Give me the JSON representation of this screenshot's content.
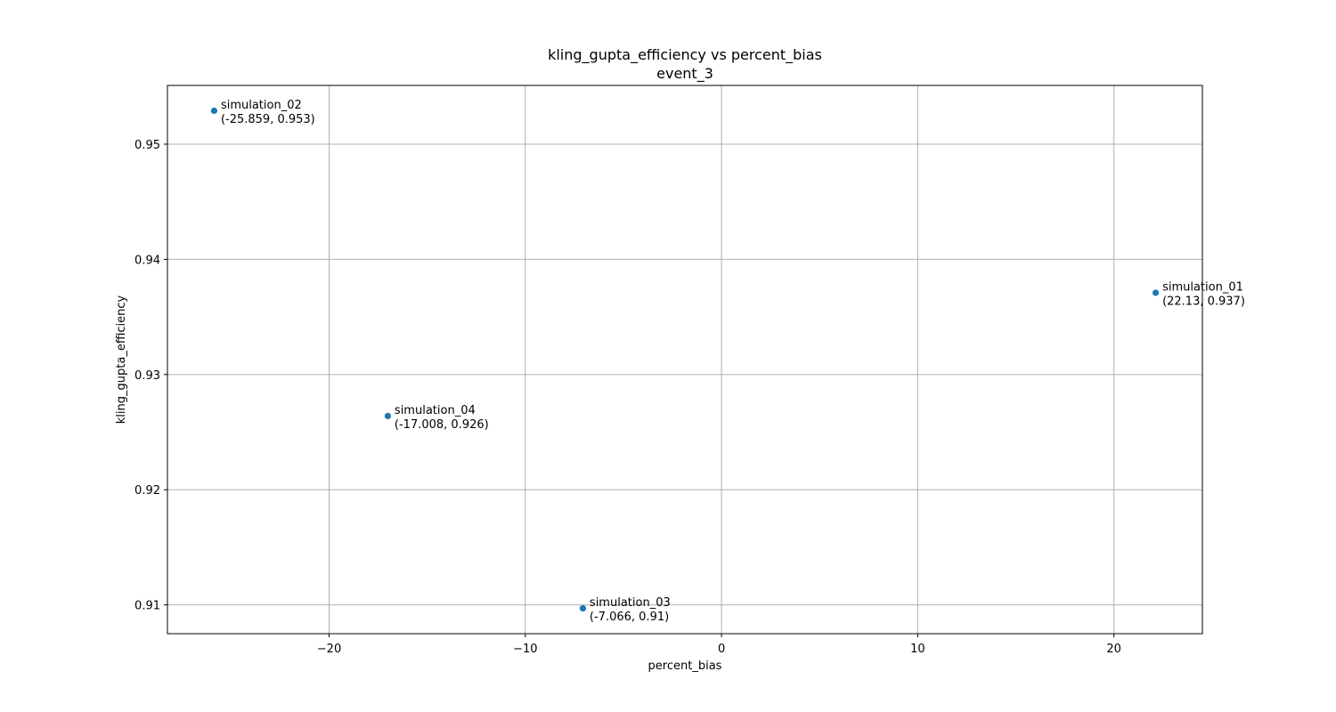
{
  "chart_data": {
    "type": "scatter",
    "title": "kling_gupta_efficiency vs percent_bias",
    "subtitle": "event_3",
    "xlabel": "percent_bias",
    "ylabel": "kling_gupta_efficiency",
    "xlim": [
      -28.24,
      24.51
    ],
    "ylim": [
      0.9075,
      0.9551
    ],
    "xticks": [
      -20,
      -10,
      0,
      10,
      20
    ],
    "xtick_labels": [
      "−20",
      "−10",
      "0",
      "10",
      "20"
    ],
    "yticks": [
      0.91,
      0.92,
      0.93,
      0.94,
      0.95
    ],
    "ytick_labels": [
      "0.91",
      "0.92",
      "0.93",
      "0.94",
      "0.95"
    ],
    "grid": true,
    "marker_color": "#1f77b4",
    "points": [
      {
        "label": "simulation_01",
        "coords": "(22.13, 0.937)",
        "x": 22.13,
        "y": 0.9371
      },
      {
        "label": "simulation_02",
        "coords": "(-25.859, 0.953)",
        "x": -25.859,
        "y": 0.9529
      },
      {
        "label": "simulation_03",
        "coords": "(-7.066, 0.91)",
        "x": -7.066,
        "y": 0.9097
      },
      {
        "label": "simulation_04",
        "coords": "(-17.008, 0.926)",
        "x": -17.008,
        "y": 0.9264
      }
    ]
  }
}
